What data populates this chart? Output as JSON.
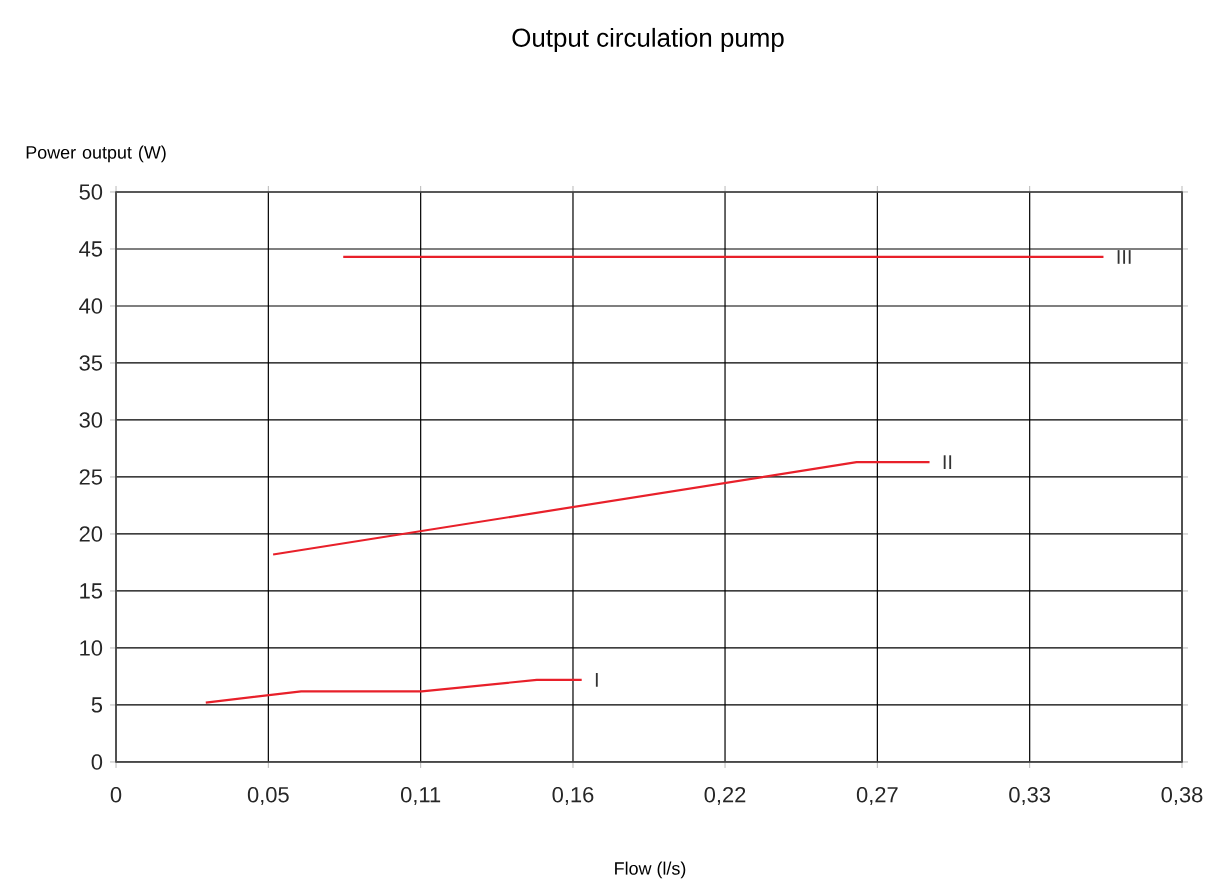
{
  "chart_data": {
    "type": "line",
    "title": "Output circulation pump",
    "xlabel": "Flow (l/s)",
    "ylabel": "Power output (W)",
    "xlim": [
      0,
      0.38
    ],
    "ylim": [
      0,
      50
    ],
    "xticks": [
      {
        "value": 0,
        "label": "0"
      },
      {
        "value": 0.0543,
        "label": "0,05"
      },
      {
        "value": 0.1086,
        "label": "0,11"
      },
      {
        "value": 0.1629,
        "label": "0,16"
      },
      {
        "value": 0.2171,
        "label": "0,22"
      },
      {
        "value": 0.2714,
        "label": "0,27"
      },
      {
        "value": 0.3257,
        "label": "0,33"
      },
      {
        "value": 0.38,
        "label": "0,38"
      }
    ],
    "yticks": [
      0,
      5,
      10,
      15,
      20,
      25,
      30,
      35,
      40,
      45,
      50
    ],
    "grid": true,
    "legend": false,
    "marker": "none",
    "line_style": "solid",
    "series": [
      {
        "name": "I",
        "color": "#e8202a",
        "x": [
          0.032,
          0.066,
          0.109,
          0.15,
          0.166
        ],
        "values": [
          5.2,
          6.2,
          6.2,
          7.2,
          7.2
        ]
      },
      {
        "name": "II",
        "color": "#e8202a",
        "x": [
          0.056,
          0.264,
          0.29
        ],
        "values": [
          18.2,
          26.3,
          26.3
        ]
      },
      {
        "name": "III",
        "color": "#e8202a",
        "x": [
          0.081,
          0.352
        ],
        "values": [
          44.3,
          44.3
        ]
      }
    ]
  }
}
